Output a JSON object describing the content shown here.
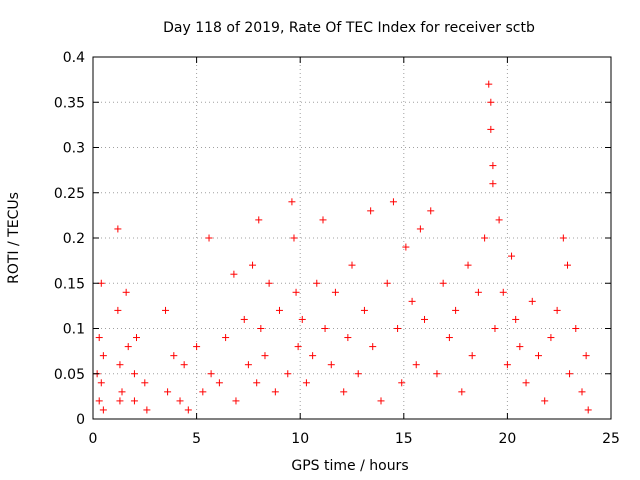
{
  "chart_data": {
    "type": "scatter",
    "title": "Day 118 of 2019, Rate Of TEC Index for receiver sctb",
    "xlabel": "GPS time / hours",
    "ylabel": "ROTI / TECUs",
    "xlim": [
      0,
      25
    ],
    "ylim": [
      0,
      0.4
    ],
    "xticks": [
      "0",
      "5",
      "10",
      "15",
      "20",
      "25"
    ],
    "yticks": [
      "0",
      "0.05",
      "0.1",
      "0.15",
      "0.2",
      "0.25",
      "0.3",
      "0.35",
      "0.4"
    ],
    "grid": true,
    "marker": "+",
    "color": "#ff0000",
    "series": [
      {
        "x": [
          0.2,
          0.3,
          0.3,
          0.4,
          0.4,
          0.5,
          0.5,
          1.2,
          1.2,
          1.3,
          1.3,
          1.4,
          1.6,
          1.7,
          2.0,
          2.0,
          2.1,
          2.5,
          2.6,
          3.5,
          3.6,
          3.9,
          4.2,
          4.4,
          4.6,
          5.0,
          5.3,
          5.6,
          5.7,
          6.1,
          6.4,
          6.8,
          6.9,
          7.3,
          7.5,
          7.7,
          7.9,
          8.0,
          8.1,
          8.3,
          8.5,
          8.8,
          9.0,
          9.4,
          9.6,
          9.7,
          9.8,
          9.9,
          10.1,
          10.3,
          10.6,
          10.8,
          11.1,
          11.2,
          11.5,
          11.7,
          12.1,
          12.3,
          12.5,
          12.8,
          13.1,
          13.4,
          13.5,
          13.9,
          14.2,
          14.5,
          14.7,
          14.9,
          15.1,
          15.4,
          15.6,
          15.8,
          16.0,
          16.3,
          16.6,
          16.9,
          17.2,
          17.5,
          17.8,
          18.1,
          18.3,
          18.6,
          18.9,
          19.1,
          19.2,
          19.2,
          19.3,
          19.3,
          19.4,
          19.6,
          19.8,
          20.0,
          20.2,
          20.4,
          20.6,
          20.9,
          21.2,
          21.5,
          21.8,
          22.1,
          22.4,
          22.7,
          22.9,
          23.0,
          23.3,
          23.6,
          23.8,
          23.9
        ],
        "y": [
          0.05,
          0.09,
          0.02,
          0.15,
          0.04,
          0.07,
          0.01,
          0.21,
          0.12,
          0.06,
          0.02,
          0.03,
          0.14,
          0.08,
          0.05,
          0.02,
          0.09,
          0.04,
          0.01,
          0.12,
          0.03,
          0.07,
          0.02,
          0.06,
          0.01,
          0.08,
          0.03,
          0.2,
          0.05,
          0.04,
          0.09,
          0.16,
          0.02,
          0.11,
          0.06,
          0.17,
          0.04,
          0.22,
          0.1,
          0.07,
          0.15,
          0.03,
          0.12,
          0.05,
          0.24,
          0.2,
          0.14,
          0.08,
          0.11,
          0.04,
          0.07,
          0.15,
          0.22,
          0.1,
          0.06,
          0.14,
          0.03,
          0.09,
          0.17,
          0.05,
          0.12,
          0.23,
          0.08,
          0.02,
          0.15,
          0.24,
          0.1,
          0.04,
          0.19,
          0.13,
          0.06,
          0.21,
          0.11,
          0.23,
          0.05,
          0.15,
          0.09,
          0.12,
          0.03,
          0.17,
          0.07,
          0.14,
          0.2,
          0.37,
          0.35,
          0.32,
          0.28,
          0.26,
          0.1,
          0.22,
          0.14,
          0.06,
          0.18,
          0.11,
          0.08,
          0.04,
          0.13,
          0.07,
          0.02,
          0.09,
          0.12,
          0.2,
          0.17,
          0.05,
          0.1,
          0.03,
          0.07,
          0.01
        ]
      }
    ]
  }
}
